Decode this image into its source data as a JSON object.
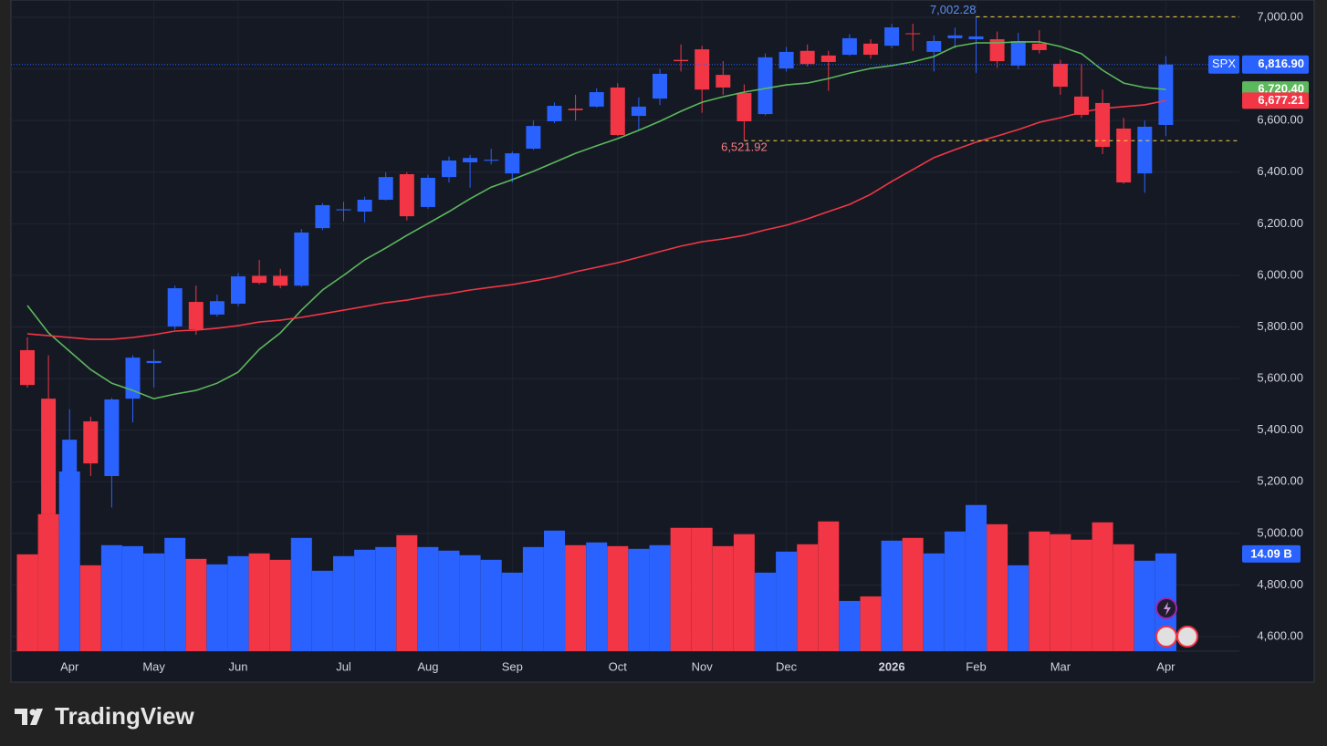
{
  "chart_data": {
    "type": "candlestick",
    "symbol": "SPX",
    "brand": "TradingView",
    "up_color": "#2962ff",
    "down_color": "#f23645",
    "grid": true,
    "categories": [
      null,
      null,
      "Apr",
      null,
      null,
      null,
      "May",
      null,
      null,
      null,
      "Jun",
      null,
      null,
      null,
      null,
      "Jul",
      null,
      null,
      null,
      "Aug",
      null,
      null,
      null,
      "Sep",
      null,
      null,
      null,
      null,
      "Oct",
      null,
      null,
      null,
      "Nov",
      null,
      null,
      null,
      "Dec",
      null,
      null,
      null,
      null,
      "2026",
      null,
      null,
      null,
      "Feb",
      null,
      null,
      null,
      "Mar",
      null,
      null,
      null,
      null,
      "Apr"
    ],
    "open": [
      5710,
      5522,
      5074,
      5434,
      5222,
      5522,
      5660,
      5802,
      5897,
      5848,
      5890,
      5998,
      5998,
      5960,
      6183,
      6252,
      6247,
      6293,
      6392,
      6265,
      6381,
      6438,
      6444,
      6395,
      6491,
      6597,
      6646,
      6654,
      6728,
      6618,
      6685,
      6835,
      6876,
      6777,
      6707,
      6625,
      6802,
      6870,
      6852,
      6855,
      6898,
      6890,
      6938,
      6866,
      6919,
      6915,
      6915,
      6813,
      6898,
      6820,
      6693,
      6668,
      6569,
      6395,
      6583
    ],
    "high": [
      5760,
      5690,
      5481,
      5452,
      5525,
      5690,
      5713,
      5960,
      5960,
      5925,
      6010,
      6060,
      6025,
      6180,
      6280,
      6285,
      6305,
      6400,
      6400,
      6390,
      6460,
      6467,
      6490,
      6480,
      6600,
      6670,
      6700,
      6725,
      6745,
      6690,
      6800,
      6895,
      6890,
      6830,
      6740,
      6860,
      6885,
      6895,
      6870,
      6935,
      6915,
      6975,
      6975,
      6930,
      6960,
      7002.28,
      6945,
      6940,
      6950,
      6835,
      6820,
      6720,
      6610,
      6600,
      6850
    ],
    "low": [
      5565,
      5050,
      4835,
      5222,
      5100,
      5430,
      5565,
      5790,
      5770,
      5840,
      5880,
      5965,
      5950,
      5955,
      6175,
      6210,
      6205,
      6290,
      6213,
      6258,
      6360,
      6340,
      6430,
      6360,
      6486,
      6590,
      6600,
      6650,
      6540,
      6560,
      6660,
      6790,
      6630,
      6700,
      6521.92,
      6620,
      6790,
      6810,
      6715,
      6850,
      6840,
      6880,
      6870,
      6790,
      6880,
      6785,
      6805,
      6800,
      6860,
      6700,
      6610,
      6470,
      6355,
      6320,
      6540
    ],
    "close": [
      5575,
      5074,
      5363,
      5271,
      5519,
      5681,
      5668,
      5950,
      5791,
      5900,
      5996,
      5971,
      5960,
      6166,
      6272,
      6256,
      6293,
      6381,
      6229,
      6378,
      6445,
      6455,
      6448,
      6473,
      6579,
      6657,
      6640,
      6710,
      6544,
      6654,
      6781,
      6830,
      6720,
      6728,
      6597,
      6845,
      6866,
      6819,
      6827,
      6919,
      6855,
      6961,
      6936,
      6908,
      6930,
      6926,
      6830,
      6908,
      6873,
      6731,
      6622,
      6498,
      6360,
      6576,
      6816.9
    ],
    "volume": [
      13.96,
      19.75,
      25.9,
      12.38,
      15.28,
      15.14,
      14.09,
      16.33,
      13.3,
      12.51,
      13.7,
      14.09,
      13.17,
      16.33,
      11.59,
      13.7,
      14.62,
      15.01,
      16.72,
      15.01,
      14.49,
      13.83,
      13.17,
      11.32,
      15.01,
      17.38,
      15.28,
      15.67,
      15.14,
      14.75,
      15.28,
      17.78,
      17.78,
      15.14,
      16.86,
      11.32,
      14.35,
      15.41,
      18.7,
      7.24,
      7.9,
      15.93,
      16.33,
      14.09,
      17.25,
      21.07,
      18.3,
      12.38,
      17.25,
      16.86,
      16.07,
      18.57,
      15.41,
      13.04,
      14.09
    ],
    "volume_label": {
      "value": 14.09,
      "label": "14.09 B"
    },
    "moving_averages": [
      {
        "color": "#5cb85c",
        "values": [
          5883,
          5777,
          5706,
          5635,
          5582,
          5554,
          5522,
          5540,
          5554,
          5582,
          5625,
          5713,
          5777,
          5865,
          5943,
          6000,
          6060,
          6106,
          6155,
          6201,
          6247,
          6297,
          6342,
          6371,
          6403,
          6438,
          6473,
          6502,
          6530,
          6562,
          6597,
          6636,
          6671,
          6692,
          6710,
          6724,
          6738,
          6745,
          6763,
          6784,
          6802,
          6813,
          6827,
          6848,
          6887,
          6901,
          6901,
          6905,
          6905,
          6887,
          6859,
          6795,
          6745,
          6728,
          6720.4
        ],
        "last_label": "6,720.40"
      },
      {
        "color": "#f23645",
        "values": [
          5773,
          5766,
          5759,
          5752,
          5752,
          5759,
          5770,
          5784,
          5788,
          5795,
          5805,
          5819,
          5826,
          5837,
          5851,
          5865,
          5879,
          5894,
          5904,
          5918,
          5929,
          5943,
          5954,
          5964,
          5978,
          5993,
          6014,
          6031,
          6049,
          6070,
          6092,
          6113,
          6130,
          6141,
          6155,
          6176,
          6194,
          6219,
          6247,
          6275,
          6314,
          6364,
          6410,
          6456,
          6487,
          6516,
          6540,
          6565,
          6593,
          6611,
          6632,
          6647,
          6654,
          6661,
          6677.21
        ],
        "last_label": "6,677.21"
      }
    ],
    "last_price": {
      "value": 6816.9,
      "label": "6,816.90"
    },
    "high_marker": {
      "value": 7002.28,
      "label": "7,002.28"
    },
    "low_marker": {
      "value": 6521.92,
      "label": "6,521.92"
    },
    "ylim": [
      4600,
      7000
    ],
    "yticks": [
      {
        "value": 4600,
        "label": "4,600.00"
      },
      {
        "value": 4800,
        "label": "4,800.00"
      },
      {
        "value": 5000,
        "label": "5,000.00"
      },
      {
        "value": 5200,
        "label": "5,200.00"
      },
      {
        "value": 5400,
        "label": "5,400.00"
      },
      {
        "value": 5600,
        "label": "5,600.00"
      },
      {
        "value": 5800,
        "label": "5,800.00"
      },
      {
        "value": 6000,
        "label": "6,000.00"
      },
      {
        "value": 6200,
        "label": "6,200.00"
      },
      {
        "value": 6400,
        "label": "6,400.00"
      },
      {
        "value": 6600,
        "label": "6,600.00"
      },
      {
        "value": 6800,
        "label": "6,800.00"
      },
      {
        "value": 7000,
        "label": "7,000.00"
      }
    ]
  }
}
